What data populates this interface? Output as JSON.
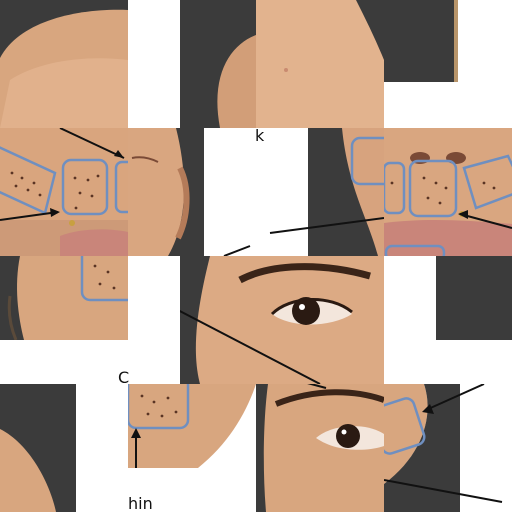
{
  "labels": {
    "k": "k",
    "c": "C",
    "hin": "hin"
  },
  "colors": {
    "background_dark": "#3b3b3b",
    "skin_light": "#e2b48f",
    "skin_mid": "#cf9a74",
    "skin_shadow": "#b47b59",
    "lip": "#c9857a",
    "box_stroke": "#6f8fc0",
    "arrow": "#111111",
    "eye_dark": "#2a1a12",
    "white_patch": "#ffffff"
  }
}
